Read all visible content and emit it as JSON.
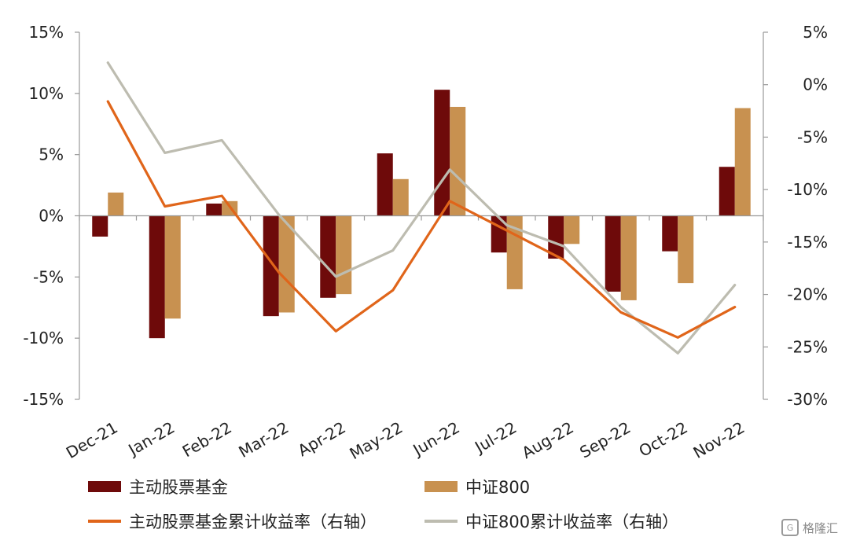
{
  "chart_data": {
    "type": "bar",
    "categories": [
      "Dec-21",
      "Jan-22",
      "Feb-22",
      "Mar-22",
      "Apr-22",
      "May-22",
      "Jun-22",
      "Jul-22",
      "Aug-22",
      "Sep-22",
      "Oct-22",
      "Nov-22"
    ],
    "left_axis": {
      "ylim": [
        -15,
        15
      ],
      "ticks": [
        15,
        10,
        5,
        0,
        -5,
        -10,
        -15
      ],
      "tick_labels": [
        "15%",
        "10%",
        "5%",
        "0%",
        "-5%",
        "-10%",
        "-15%"
      ]
    },
    "right_axis": {
      "ylim": [
        -30,
        5
      ],
      "ticks": [
        5,
        0,
        -5,
        -10,
        -15,
        -20,
        -25,
        -30
      ],
      "tick_labels": [
        "5%",
        "0%",
        "-5%",
        "-10%",
        "-15%",
        "-20%",
        "-25%",
        "-30%"
      ]
    },
    "series": [
      {
        "name": "主动股票基金",
        "kind": "bar",
        "axis": "left",
        "color": "#6e0a0a",
        "values": [
          -1.7,
          -10.0,
          1.0,
          -8.2,
          -6.7,
          5.1,
          10.3,
          -3.0,
          -3.5,
          -6.2,
          -2.9,
          4.0
        ]
      },
      {
        "name": "中证800",
        "kind": "bar",
        "axis": "left",
        "color": "#c89150",
        "values": [
          1.9,
          -8.4,
          1.2,
          -7.9,
          -6.4,
          3.0,
          8.9,
          -6.0,
          -2.3,
          -6.9,
          -5.5,
          8.8
        ]
      },
      {
        "name": "主动股票基金累计收益率（右轴）",
        "kind": "line",
        "axis": "right",
        "color": "#e0651a",
        "values": [
          -1.6,
          -11.6,
          -10.6,
          -17.9,
          -23.5,
          -19.6,
          -11.1,
          -13.9,
          -16.7,
          -21.7,
          -24.1,
          -21.2
        ]
      },
      {
        "name": "中证800累计收益率（右轴）",
        "kind": "line",
        "axis": "right",
        "color": "#bdbcb0",
        "values": [
          2.1,
          -6.5,
          -5.3,
          -12.4,
          -18.3,
          -15.8,
          -8.1,
          -13.4,
          -15.4,
          -21.2,
          -25.6,
          -19.1
        ]
      }
    ],
    "legend_position": "bottom",
    "grid": false
  },
  "legend": {
    "items": [
      {
        "label": "主动股票基金",
        "color": "#6e0a0a",
        "kind": "box"
      },
      {
        "label": "中证800",
        "color": "#c89150",
        "kind": "box"
      },
      {
        "label": "主动股票基金累计收益率（右轴）",
        "color": "#e0651a",
        "kind": "line"
      },
      {
        "label": "中证800累计收益率（右轴）",
        "color": "#bdbcb0",
        "kind": "line"
      }
    ]
  },
  "watermark": {
    "icon": "G",
    "text": "格隆汇"
  }
}
